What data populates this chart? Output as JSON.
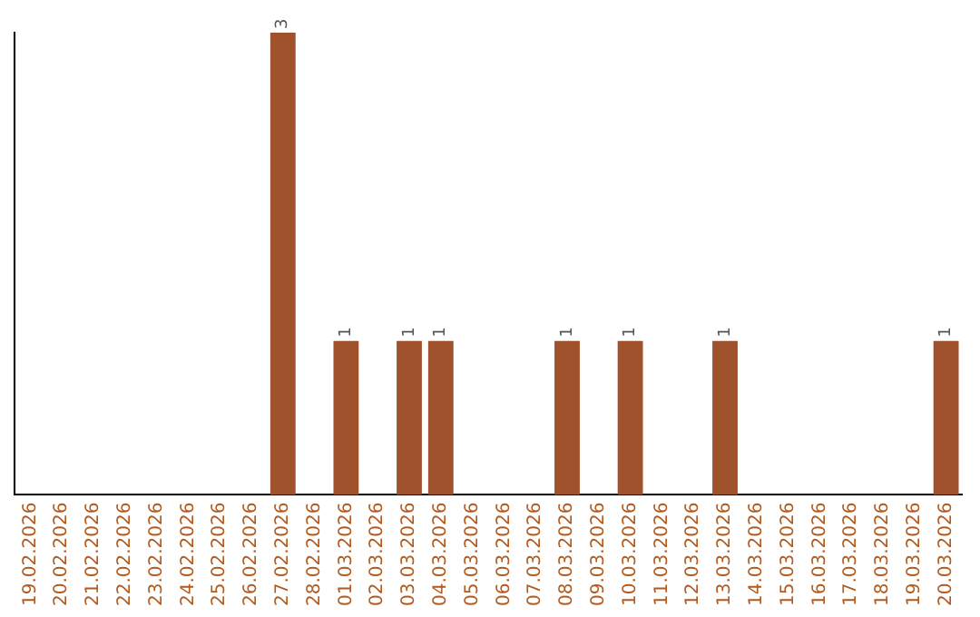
{
  "chart_data": {
    "type": "bar",
    "categories": [
      "19.02.2026",
      "20.02.2026",
      "21.02.2026",
      "22.02.2026",
      "23.02.2026",
      "24.02.2026",
      "25.02.2026",
      "26.02.2026",
      "27.02.2026",
      "28.02.2026",
      "01.03.2026",
      "02.03.2026",
      "03.03.2026",
      "04.03.2026",
      "05.03.2026",
      "06.03.2026",
      "07.03.2026",
      "08.03.2026",
      "09.03.2026",
      "10.03.2026",
      "11.03.2026",
      "12.03.2026",
      "13.03.2026",
      "14.03.2026",
      "15.03.2026",
      "16.03.2026",
      "17.03.2026",
      "18.03.2026",
      "19.03.2026",
      "20.03.2026"
    ],
    "values": [
      0,
      0,
      0,
      0,
      0,
      0,
      0,
      0,
      3,
      0,
      1,
      0,
      1,
      1,
      0,
      0,
      0,
      1,
      0,
      1,
      0,
      0,
      1,
      0,
      0,
      0,
      0,
      0,
      0,
      1
    ],
    "value_labels": [
      null,
      null,
      null,
      null,
      null,
      null,
      null,
      null,
      "3",
      null,
      "1",
      null,
      "1",
      "1",
      null,
      null,
      null,
      "1",
      null,
      "1",
      null,
      null,
      "1",
      null,
      null,
      null,
      null,
      null,
      null,
      "1"
    ],
    "color": "#a0522d",
    "grid": false,
    "legend": false
  }
}
